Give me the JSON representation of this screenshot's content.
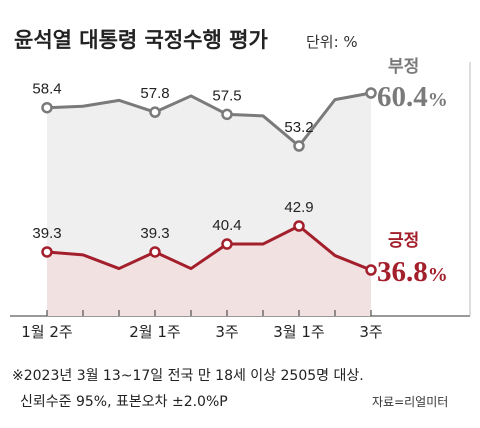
{
  "chart_data": {
    "type": "line",
    "title": "윤석열 대통령 국정수행 평가",
    "unit": "단위: %",
    "categories": [
      "1월 2주",
      "",
      "",
      "2월 1주",
      "",
      "3주",
      "",
      "3월 1주",
      "",
      "3주"
    ],
    "series": [
      {
        "name": "부정",
        "final_label": "60.4",
        "final_suffix": "%",
        "color": "#7a7a7a",
        "values": [
          58.4,
          58.6,
          59.4,
          57.8,
          60.0,
          57.5,
          57.3,
          53.2,
          59.5,
          60.4
        ],
        "labels": [
          "58.4",
          "",
          "",
          "57.8",
          "",
          "57.5",
          "",
          "53.2",
          "",
          ""
        ]
      },
      {
        "name": "긍정",
        "final_label": "36.8",
        "final_suffix": "%",
        "color": "#a31f2b",
        "area_color": "#f1e1e1",
        "values": [
          39.3,
          38.9,
          37.0,
          39.3,
          37.0,
          40.4,
          40.4,
          42.9,
          38.8,
          36.8
        ],
        "labels": [
          "39.3",
          "",
          "",
          "39.3",
          "",
          "40.4",
          "",
          "42.9",
          "",
          ""
        ]
      }
    ],
    "grid": false
  },
  "note": {
    "line1": "※2023년 3월 13~17일 전국 만 18세 이상 2505명 대상.",
    "line2": "신뢰수준 95%, 표본오차 ±2.0%P",
    "source": "자료=리얼미터"
  }
}
